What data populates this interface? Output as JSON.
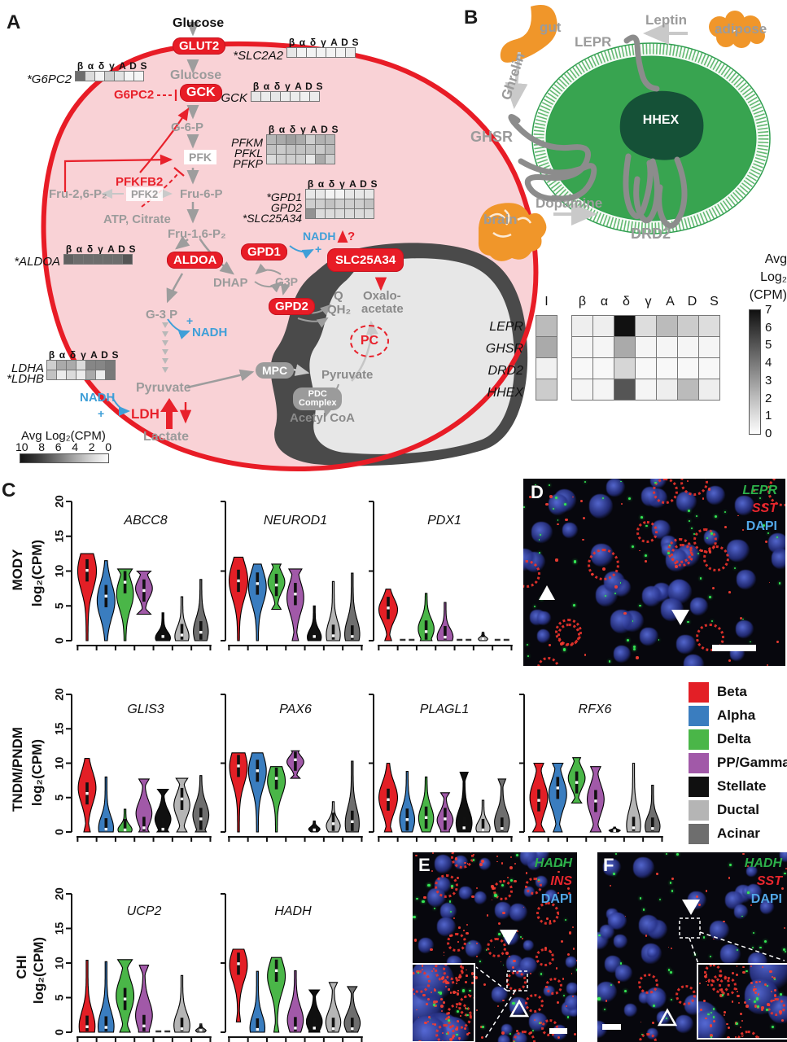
{
  "panel_a": {
    "letter": "A",
    "labels": {
      "glucose_top": "Glucose",
      "glut2": "GLUT2",
      "glucose_in": "Glucose",
      "g6pc2_reg": "G6PC2",
      "gck_box": "GCK",
      "g6p": "G-6-P",
      "pfk": "PFK",
      "pfkfb2": "PFKFB2",
      "fru26": "Fru-2,6-P₂",
      "pfk2": "PFK2",
      "fru6": "Fru-6-P",
      "atp_citrate": "ATP, Citrate",
      "fru16": "Fru-1,6-P₂",
      "aldoa_box": "ALDOA",
      "dhap": "DHAP",
      "gpd1_box": "GPD1",
      "g3p": "G3P",
      "gpd2_box": "GPD2",
      "slc25a34_box": "SLC25A34",
      "nadh1": "NADH",
      "q_mark": "?",
      "q": "Q",
      "qh2": "QH₂",
      "oxalo": "Oxalo-",
      "acetate": "acetate",
      "pc": "PC",
      "g3p_left": "G-3 P",
      "plus1": "+",
      "nadh2": "NADH",
      "plus3": "+",
      "mpc": "MPC",
      "pyruvate_left": "Pyruvate",
      "pyruvate_right": "Pyruvate",
      "pdc_l1": "PDC",
      "pdc_l2": "Complex",
      "acetyl_coa": "Acetyl CoA",
      "nadh3": "NADH",
      "plus2": "+",
      "ldh": "LDH",
      "lactate": "Lactate"
    },
    "heatmap_labels": {
      "slc2a2": "*SLC2A2",
      "g6pc2": "*G6PC2",
      "gck": "GCK",
      "pfkm": "PFKM",
      "pfkl": "PFKL",
      "pfkp": "PFKP",
      "gpd1": "*GPD1",
      "gpd2": "GPD2",
      "slc25a34": "*SLC25A34",
      "aldoa": "*ALDOA",
      "ldha": "LDHA",
      "ldhb": "*LDHB"
    },
    "colorbar": {
      "title": "Avg Log₂(CPM)"
    }
  },
  "panel_b": {
    "letter": "B",
    "organs": {
      "gut": "gut",
      "adipose": "adipose",
      "brain": "brain"
    },
    "ligands": {
      "leptin": "Leptin",
      "ghrelin": "Ghrelin",
      "dopamine": "Dopamine"
    },
    "receptors": {
      "lepr": "LEPR",
      "ghsr": "GHSR",
      "drd2": "DRD2"
    },
    "nucleus_gene": "HHEX",
    "colorbar": {
      "lines": [
        "Avg",
        "Log₂",
        "(CPM)"
      ]
    }
  },
  "panel_c": {
    "letter": "C"
  },
  "panel_d": {
    "letter": "D",
    "legend": [
      {
        "text": "LEPR",
        "color": "#2db04a"
      },
      {
        "text": "SST",
        "color": "#e8262d"
      },
      {
        "text": "DAPI",
        "color": "#52a8e8"
      }
    ]
  },
  "panel_e": {
    "letter": "E",
    "legend": [
      {
        "text": "HADH",
        "color": "#2db04a"
      },
      {
        "text": "INS",
        "color": "#e8262d"
      },
      {
        "text": "DAPI",
        "color": "#52a8e8"
      }
    ]
  },
  "panel_f": {
    "letter": "F",
    "legend": [
      {
        "text": "HADH",
        "color": "#2db04a"
      },
      {
        "text": "SST",
        "color": "#e8262d"
      },
      {
        "text": "DAPI",
        "color": "#52a8e8"
      }
    ]
  },
  "chart_data": {
    "type": "multi",
    "heatmap_header": [
      "β",
      "α",
      "δ",
      "γ",
      "A",
      "D",
      "S"
    ],
    "heatmap_scale_a": {
      "max": 10,
      "title": "Avg Log₂(CPM)",
      "ticks": [
        "10",
        "8",
        "6",
        "4",
        "2",
        "0"
      ]
    },
    "heatmaps_a": {
      "slc2a2": [
        [
          1,
          0.5,
          0.5,
          0.5,
          0.5,
          0.5,
          0.8
        ]
      ],
      "g6pc2": [
        [
          6,
          1.5,
          0.5,
          2,
          1.2,
          0.4,
          0.4
        ]
      ],
      "gck": [
        [
          1,
          0.8,
          1,
          0.8,
          0.8,
          0.6,
          0.8
        ]
      ],
      "pfk": [
        [
          3,
          3.5,
          4,
          3.5,
          2,
          3.2,
          3
        ],
        [
          2.5,
          2.2,
          2.5,
          2.5,
          2.5,
          2.2,
          2.8
        ],
        [
          1.5,
          2,
          2,
          2,
          1,
          3.5,
          2
        ]
      ],
      "gpd": [
        [
          1,
          1,
          0.5,
          0.5,
          1,
          1,
          1
        ],
        [
          2,
          2,
          2.5,
          2,
          2,
          2,
          2.5
        ],
        [
          4.5,
          1.5,
          1.5,
          1.5,
          1.5,
          1.5,
          1.5
        ]
      ],
      "aldoa": [
        [
          6.5,
          6,
          6,
          6,
          6,
          6,
          7
        ]
      ],
      "ldh": [
        [
          2,
          3.5,
          3.5,
          1.5,
          5,
          5,
          5.5
        ],
        [
          2.5,
          0.8,
          1.5,
          0.8,
          3.5,
          0.8,
          5.5
        ]
      ]
    },
    "heatmap_b": {
      "col_headers": [
        "I",
        "β",
        "α",
        "δ",
        "γ",
        "A",
        "D",
        "S"
      ],
      "scale": {
        "max": 7,
        "ticks": [
          "7",
          "6",
          "5",
          "4",
          "3",
          "2",
          "1",
          "0"
        ]
      },
      "rows": [
        {
          "gene": "LEPR",
          "values": [
            2,
            0.5,
            0.5,
            7,
            1,
            2,
            1.5,
            1
          ]
        },
        {
          "gene": "GHSR",
          "values": [
            2.5,
            0.3,
            0.3,
            2.5,
            0.3,
            0.3,
            0.3,
            0.3
          ]
        },
        {
          "gene": "DRD2",
          "values": [
            0.4,
            0.2,
            0.2,
            1.2,
            0.2,
            0.2,
            0.2,
            0.2
          ]
        },
        {
          "gene": "HHEX",
          "values": [
            1.5,
            0.3,
            0.3,
            5,
            0.3,
            0.5,
            2,
            0.5
          ]
        }
      ]
    },
    "violins": {
      "type": "violin",
      "ylabel": "log₂(CPM)",
      "ylim": [
        0,
        20
      ],
      "yticks": [
        0,
        5,
        10,
        15,
        20
      ],
      "cell_types": [
        {
          "name": "Beta",
          "color": "#e31f26"
        },
        {
          "name": "Alpha",
          "color": "#3a7dbf"
        },
        {
          "name": "Delta",
          "color": "#4ab648"
        },
        {
          "name": "PP/Gamma",
          "color": "#a159a8"
        },
        {
          "name": "Stellate",
          "color": "#101010"
        },
        {
          "name": "Ductal",
          "color": "#b5b5b5"
        },
        {
          "name": "Acinar",
          "color": "#6e6e6e"
        }
      ],
      "rows": [
        {
          "group": "MODY",
          "genes": [
            {
              "name": "ABCC8",
              "data": [
                {
                  "hi": 12.5,
                  "med": 10.1,
                  "w": 1,
                  "bulge": 0.8
                },
                {
                  "hi": 11.5,
                  "med": 6.4,
                  "w": 0.95,
                  "bulge": 0.5
                },
                {
                  "hi": 10.3,
                  "med": 8.4,
                  "w": 0.9,
                  "bulge": 0.65,
                  "ftop": 0.85
                },
                {
                  "hi": 10,
                  "lo": 3.8,
                  "med": 7.2,
                  "w": 0.9,
                  "bulge": 0.6,
                  "flat": 0.8,
                  "ftop": 0.8
                },
                {
                  "hi": 4,
                  "med": 0.6,
                  "w": 0.8,
                  "bulge": 0.1,
                  "flat": 0.6
                },
                {
                  "hi": 6.3,
                  "med": 0.8,
                  "w": 0.75,
                  "bulge": 0.1,
                  "flat": 0.55
                },
                {
                  "hi": 8.8,
                  "med": 1.2,
                  "w": 0.8,
                  "bulge": 0.15,
                  "flat": 0.6
                }
              ]
            },
            {
              "name": "NEUROD1",
              "data": [
                {
                  "hi": 12,
                  "med": 8.6,
                  "w": 1,
                  "bulge": 0.72
                },
                {
                  "hi": 11,
                  "med": 8.2,
                  "w": 0.95,
                  "bulge": 0.7
                },
                {
                  "hi": 11,
                  "lo": 4.5,
                  "med": 8,
                  "w": 0.9,
                  "bulge": 0.6,
                  "flat": 0.5,
                  "ftop": 0.5
                },
                {
                  "hi": 10.3,
                  "med": 6.7,
                  "w": 0.9,
                  "bulge": 0.6,
                  "flat": 0.3,
                  "ftop": 0.75
                },
                {
                  "hi": 5,
                  "med": 0.6,
                  "w": 0.75,
                  "bulge": 0.1,
                  "flat": 0.6
                },
                {
                  "hi": 8.5,
                  "med": 0.7,
                  "w": 0.75,
                  "bulge": 0.1,
                  "flat": 0.55
                },
                {
                  "hi": 9.7,
                  "med": 0.6,
                  "w": 0.8,
                  "bulge": 0.1,
                  "flat": 0.6
                }
              ]
            },
            {
              "name": "PDX1",
              "data": [
                {
                  "hi": 7.4,
                  "med": 4.7,
                  "w": 1,
                  "bulge": 0.6,
                  "flat": 0.3
                },
                {
                  "absent": true
                },
                {
                  "hi": 6.8,
                  "med": 1.3,
                  "w": 0.85,
                  "bulge": 0.25,
                  "flat": 0.7
                },
                {
                  "hi": 5.5,
                  "med": 0.5,
                  "w": 0.85,
                  "bulge": 0.1,
                  "flat": 0.7
                },
                {
                  "absent": true
                },
                {
                  "hi": 1.2,
                  "med": 0.3,
                  "w": 0.5,
                  "bulge": 0.2,
                  "flat": 0.4
                },
                {
                  "absent": true
                }
              ]
            }
          ]
        },
        {
          "group": "TNDM/PNDM",
          "genes": [
            {
              "name": "GLIS3",
              "data": [
                {
                  "hi": 10.7,
                  "med": 5.6,
                  "w": 0.95,
                  "bulge": 0.6,
                  "flat": 0.3
                },
                {
                  "hi": 8,
                  "med": 0.4,
                  "w": 0.8,
                  "bulge": 0.07,
                  "flat": 0.6
                },
                {
                  "hi": 3.3,
                  "med": 0.3,
                  "w": 0.75,
                  "bulge": 0.1,
                  "flat": 0.5
                },
                {
                  "hi": 7.7,
                  "med": 0.6,
                  "w": 0.85,
                  "bulge": 0.35,
                  "flat": 0.6,
                  "ftop": 0.6
                },
                {
                  "hi": 6.2,
                  "med": 0.4,
                  "w": 0.85,
                  "bulge": 0.3,
                  "flat": 0.7,
                  "ftop": 0.65
                },
                {
                  "hi": 7.8,
                  "med": 4.8,
                  "w": 0.85,
                  "bulge": 0.5,
                  "flat": 0.6,
                  "ftop": 0.7
                },
                {
                  "hi": 8.2,
                  "med": 1.9,
                  "w": 0.85,
                  "bulge": 0.3,
                  "flat": 0.65
                }
              ]
            },
            {
              "name": "PAX6",
              "data": [
                {
                  "hi": 11.5,
                  "med": 9.6,
                  "w": 0.95,
                  "bulge": 0.82
                },
                {
                  "hi": 11.5,
                  "med": 8.9,
                  "w": 0.95,
                  "bulge": 0.77
                },
                {
                  "hi": 9.5,
                  "med": 7.8,
                  "w": 0.95,
                  "bulge": 0.78,
                  "ftop": 0.6
                },
                {
                  "hi": 11.8,
                  "lo": 7.8,
                  "med": 10.5,
                  "w": 0.9,
                  "bulge": 0.6,
                  "flat": 0.5,
                  "ftop": 0.4
                },
                {
                  "hi": 1.6,
                  "med": 0.3,
                  "w": 0.6,
                  "bulge": 0.25,
                  "flat": 0.5
                },
                {
                  "hi": 4.4,
                  "med": 1.2,
                  "w": 0.75,
                  "bulge": 0.2,
                  "flat": 0.5
                },
                {
                  "hi": 10.3,
                  "med": 1.5,
                  "w": 0.75,
                  "bulge": 0.12,
                  "flat": 0.6
                }
              ]
            },
            {
              "name": "PLAGL1",
              "data": [
                {
                  "hi": 10,
                  "med": 4.7,
                  "w": 1,
                  "bulge": 0.5,
                  "flat": 0.35
                },
                {
                  "hi": 8.8,
                  "med": 1.8,
                  "w": 0.8,
                  "bulge": 0.2,
                  "flat": 0.5
                },
                {
                  "hi": 8,
                  "med": 2.1,
                  "w": 0.8,
                  "bulge": 0.25,
                  "flat": 0.5
                },
                {
                  "hi": 5.7,
                  "med": 1.9,
                  "w": 0.85,
                  "bulge": 0.3,
                  "flat": 0.5,
                  "ftop": 0.5
                },
                {
                  "hi": 8.7,
                  "med": 0.6,
                  "w": 0.85,
                  "bulge": 0.15,
                  "flat": 0.7,
                  "ftop": 0.45
                },
                {
                  "hi": 4.6,
                  "med": 0.3,
                  "w": 0.75,
                  "bulge": 0.12,
                  "flat": 0.5
                },
                {
                  "hi": 7.7,
                  "med": 0.5,
                  "w": 0.8,
                  "bulge": 0.18,
                  "flat": 0.55,
                  "ftop": 0.45
                }
              ]
            },
            {
              "name": "RFX6",
              "data": [
                {
                  "hi": 10,
                  "med": 4.6,
                  "w": 0.95,
                  "bulge": 0.5,
                  "flat": 0.65,
                  "ftop": 0.5
                },
                {
                  "hi": 10,
                  "med": 6.4,
                  "w": 0.95,
                  "bulge": 0.55,
                  "flat": 0.45,
                  "ftop": 0.55
                },
                {
                  "hi": 10.8,
                  "lo": 4.2,
                  "med": 7.2,
                  "w": 0.9,
                  "bulge": 0.55,
                  "flat": 0.55,
                  "ftop": 0.4
                },
                {
                  "hi": 9.5,
                  "med": 4.5,
                  "w": 0.9,
                  "bulge": 0.5,
                  "flat": 0.6,
                  "ftop": 0.55
                },
                {
                  "hi": 0.7,
                  "med": 0.2,
                  "w": 0.6,
                  "bulge": 0.3,
                  "flat": 0.5
                },
                {
                  "hi": 10,
                  "med": 0.6,
                  "w": 0.75,
                  "bulge": 0.1,
                  "flat": 0.55
                },
                {
                  "hi": 6.8,
                  "med": 0.5,
                  "w": 0.8,
                  "bulge": 0.12,
                  "flat": 0.6
                }
              ]
            }
          ]
        },
        {
          "group": "CHI",
          "genes": [
            {
              "name": "UCP2",
              "data": [
                {
                  "hi": 10.4,
                  "med": 0.8,
                  "w": 0.85,
                  "bulge": 0.08,
                  "flat": 0.65
                },
                {
                  "hi": 10.2,
                  "med": 0.7,
                  "w": 0.85,
                  "bulge": 0.08,
                  "flat": 0.65
                },
                {
                  "hi": 10.5,
                  "med": 4.8,
                  "w": 0.95,
                  "bulge": 0.5,
                  "flat": 0.55,
                  "ftop": 0.8
                },
                {
                  "hi": 9.7,
                  "med": 0.9,
                  "w": 0.9,
                  "bulge": 0.25,
                  "flat": 0.6,
                  "ftop": 0.5
                },
                {
                  "absent": true
                },
                {
                  "hi": 8.2,
                  "med": 0.5,
                  "w": 0.85,
                  "bulge": 0.12,
                  "flat": 0.6
                },
                {
                  "hi": 1.2,
                  "med": 0.3,
                  "w": 0.55,
                  "bulge": 0.2,
                  "flat": 0.4
                }
              ]
            },
            {
              "name": "HADH",
              "data": [
                {
                  "hi": 12,
                  "lo": 1.5,
                  "med": 9.9,
                  "w": 0.95,
                  "bulge": 0.78,
                  "flat": 0.15
                },
                {
                  "hi": 8.8,
                  "med": 0.4,
                  "w": 0.8,
                  "bulge": 0.07,
                  "flat": 0.6
                },
                {
                  "hi": 10.8,
                  "med": 8.9,
                  "w": 0.95,
                  "bulge": 0.75,
                  "flat": 0.2,
                  "ftop": 0.5
                },
                {
                  "hi": 8.9,
                  "med": 0.6,
                  "w": 0.85,
                  "bulge": 0.2,
                  "flat": 0.6
                },
                {
                  "hi": 6.1,
                  "med": 0.6,
                  "w": 0.85,
                  "bulge": 0.25,
                  "flat": 0.65,
                  "ftop": 0.6
                },
                {
                  "hi": 7.2,
                  "med": 0.5,
                  "w": 0.8,
                  "bulge": 0.2,
                  "flat": 0.6,
                  "ftop": 0.5
                },
                {
                  "hi": 6.6,
                  "med": 0.5,
                  "w": 0.85,
                  "bulge": 0.2,
                  "flat": 0.6,
                  "ftop": 0.55
                }
              ]
            }
          ]
        }
      ]
    }
  }
}
